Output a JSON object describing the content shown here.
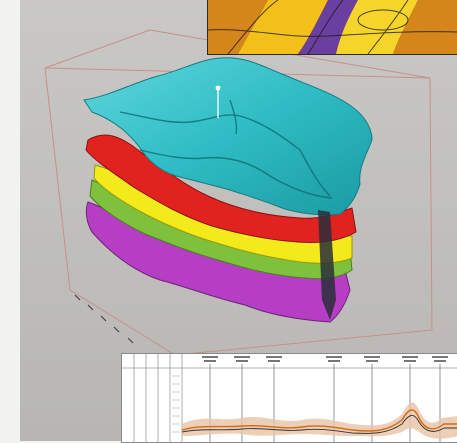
{
  "scene": {
    "background_color": "#bdbcb9",
    "page_color": "#f2f2f0",
    "box_color": "#c98a8a",
    "surfaces": [
      {
        "name": "top",
        "color": "#2fbcc4",
        "edge": "#147b82"
      },
      {
        "name": "red",
        "color": "#e0231f",
        "edge": "#8c1212"
      },
      {
        "name": "yellow",
        "color": "#f2ea1a",
        "edge": "#9d9510"
      },
      {
        "name": "green",
        "color": "#7ec13c",
        "edge": "#4c7d21"
      },
      {
        "name": "purple",
        "color": "#b63ec4",
        "edge": "#6e2278"
      }
    ]
  },
  "inset_top": {
    "colors": [
      "#6b2418",
      "#d4861a",
      "#f2c018",
      "#f5d52a",
      "#6b3fa0"
    ]
  },
  "log_panel": {
    "curve_color": "#d16b12",
    "band_color": "#e8c3a6"
  }
}
